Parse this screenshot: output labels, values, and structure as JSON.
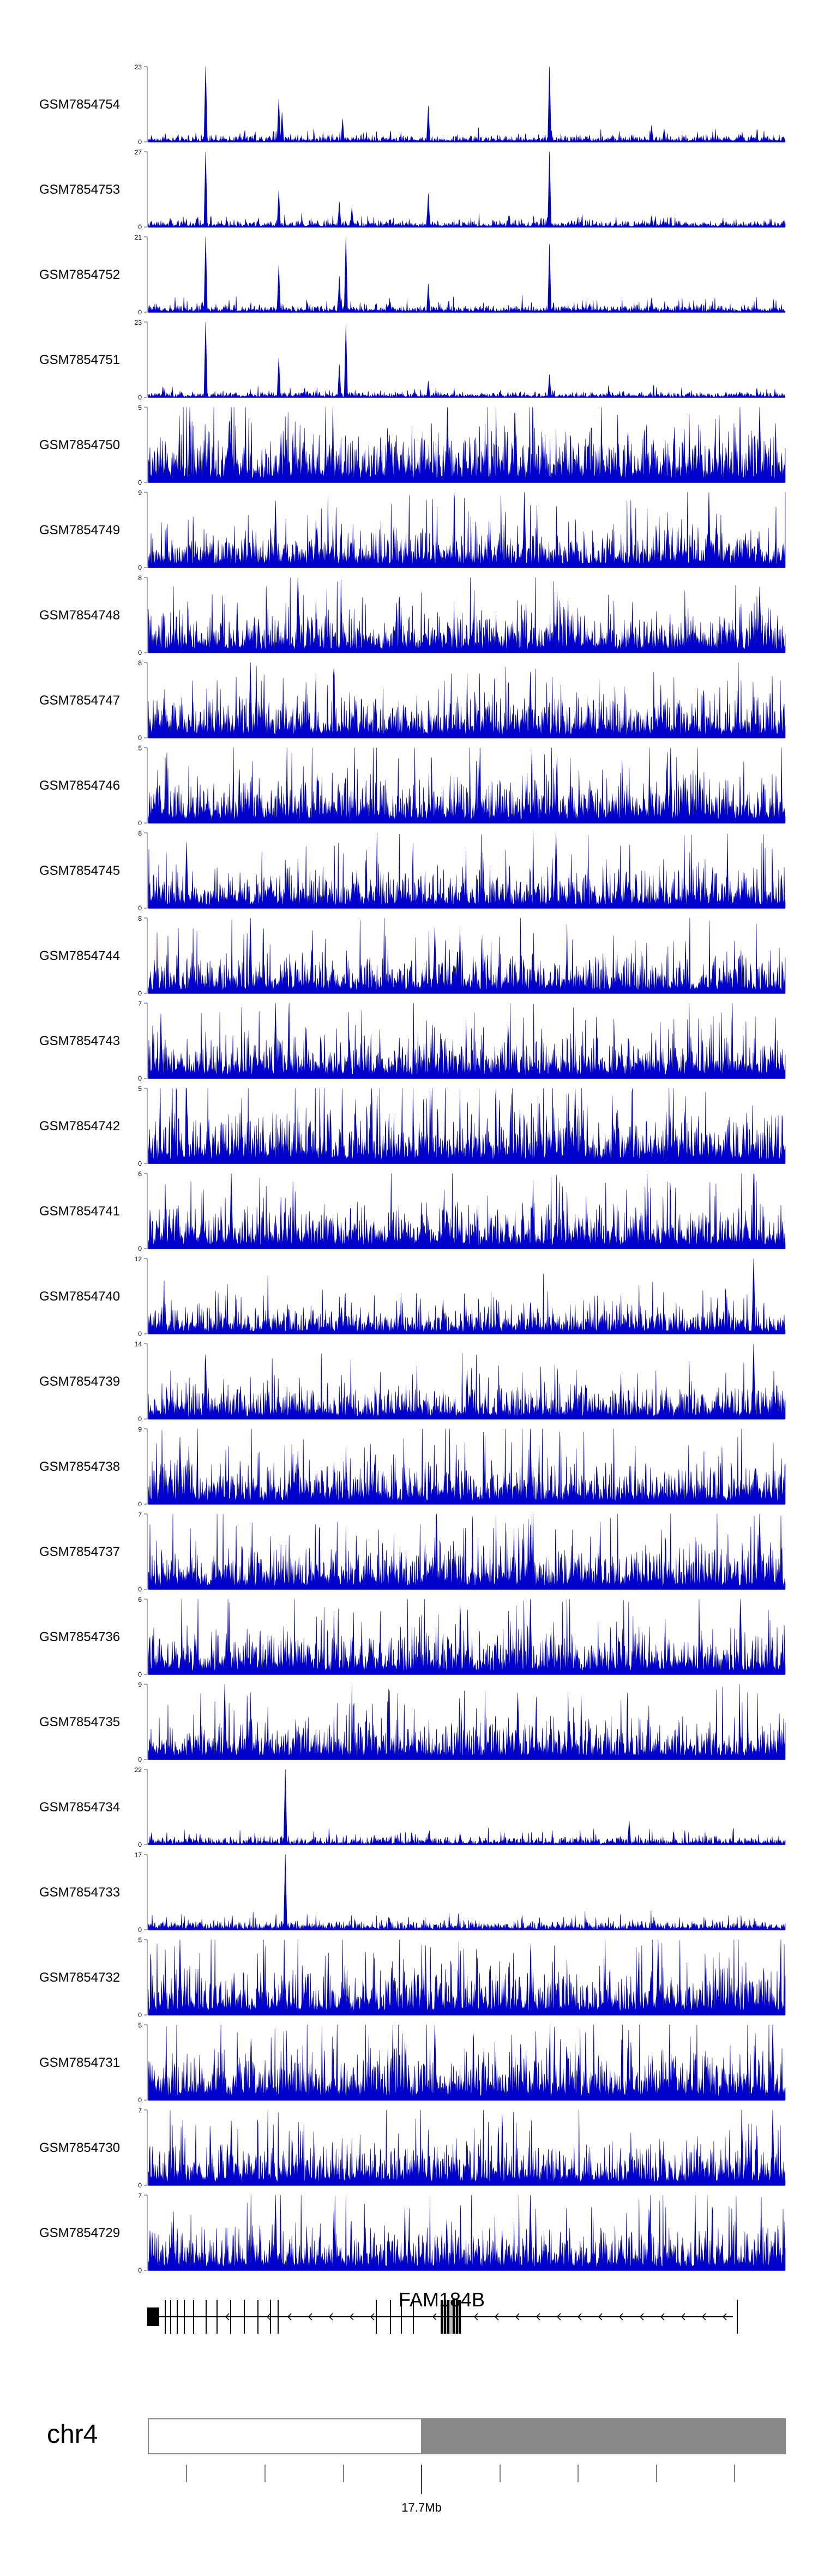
{
  "chart_data": {
    "type": "area",
    "color": "#0000cc",
    "tracks": [
      {
        "name": "GSM7854754",
        "ymax": "23",
        "ymin": "0",
        "max": 23,
        "peaks": [
          [
            0.09,
            23
          ],
          [
            0.205,
            13
          ],
          [
            0.21,
            9
          ],
          [
            0.305,
            7
          ],
          [
            0.44,
            11
          ],
          [
            0.63,
            23
          ],
          [
            0.79,
            5
          ],
          [
            0.81,
            4
          ]
        ],
        "base": 1.2
      },
      {
        "name": "GSM7854753",
        "ymax": "27",
        "ymin": "0",
        "max": 27,
        "peaks": [
          [
            0.09,
            27
          ],
          [
            0.205,
            13
          ],
          [
            0.3,
            9
          ],
          [
            0.32,
            7
          ],
          [
            0.44,
            12
          ],
          [
            0.63,
            27
          ],
          [
            0.79,
            4
          ]
        ],
        "base": 1.4
      },
      {
        "name": "GSM7854752",
        "ymax": "21",
        "ymin": "0",
        "max": 21,
        "peaks": [
          [
            0.09,
            21
          ],
          [
            0.205,
            13
          ],
          [
            0.3,
            10
          ],
          [
            0.31,
            21
          ],
          [
            0.44,
            8
          ],
          [
            0.63,
            19
          ],
          [
            0.79,
            4
          ]
        ],
        "base": 1.2
      },
      {
        "name": "GSM7854751",
        "ymax": "23",
        "ymin": "0",
        "max": 23,
        "peaks": [
          [
            0.09,
            23
          ],
          [
            0.205,
            12
          ],
          [
            0.3,
            10
          ],
          [
            0.31,
            22
          ],
          [
            0.44,
            5
          ],
          [
            0.63,
            7
          ]
        ],
        "base": 0.9
      },
      {
        "name": "GSM7854750",
        "ymax": "5",
        "ymin": "0",
        "max": 5,
        "peaks": [
          [
            0.13,
            5
          ],
          [
            0.47,
            5
          ],
          [
            0.96,
            5
          ]
        ],
        "base": 1.9
      },
      {
        "name": "GSM7854749",
        "ymax": "9",
        "ymin": "0",
        "max": 9,
        "peaks": [
          [
            0.2,
            8
          ],
          [
            0.59,
            9
          ],
          [
            0.88,
            9
          ]
        ],
        "base": 2.7
      },
      {
        "name": "GSM7854748",
        "ymax": "8",
        "ymin": "0",
        "max": 8,
        "peaks": [
          [
            0.235,
            8
          ],
          [
            0.96,
            7
          ]
        ],
        "base": 2.4
      },
      {
        "name": "GSM7854747",
        "ymax": "8",
        "ymin": "0",
        "max": 8,
        "peaks": [
          [
            0.16,
            8
          ],
          [
            0.6,
            7
          ]
        ],
        "base": 2.4
      },
      {
        "name": "GSM7854746",
        "ymax": "5",
        "ymin": "0",
        "max": 5,
        "peaks": [
          [
            0.82,
            5
          ]
        ],
        "base": 1.7
      },
      {
        "name": "GSM7854745",
        "ymax": "8",
        "ymin": "0",
        "max": 8,
        "peaks": [
          [
            0.64,
            8
          ],
          [
            0.06,
            7
          ]
        ],
        "base": 2.4
      },
      {
        "name": "GSM7854744",
        "ymax": "8",
        "ymin": "0",
        "max": 8,
        "peaks": [
          [
            0.16,
            8
          ],
          [
            0.45,
            7
          ]
        ],
        "base": 2.4
      },
      {
        "name": "GSM7854743",
        "ymax": "7",
        "ymin": "0",
        "max": 7,
        "peaks": [
          [
            0.2,
            7
          ],
          [
            0.02,
            6
          ]
        ],
        "base": 2.2
      },
      {
        "name": "GSM7854742",
        "ymax": "5",
        "ymin": "0",
        "max": 5,
        "peaks": [
          [
            0.06,
            5
          ],
          [
            0.67,
            5
          ]
        ],
        "base": 1.9
      },
      {
        "name": "GSM7854741",
        "ymax": "6",
        "ymin": "0",
        "max": 6,
        "peaks": [
          [
            0.13,
            6
          ],
          [
            0.95,
            6
          ]
        ],
        "base": 1.9
      },
      {
        "name": "GSM7854740",
        "ymax": "12",
        "ymin": "0",
        "max": 12,
        "peaks": [
          [
            0.95,
            12
          ],
          [
            0.6,
            5
          ]
        ],
        "base": 2.4
      },
      {
        "name": "GSM7854739",
        "ymax": "14",
        "ymin": "0",
        "max": 14,
        "peaks": [
          [
            0.09,
            12
          ],
          [
            0.95,
            14
          ],
          [
            0.5,
            9
          ]
        ],
        "base": 3.4
      },
      {
        "name": "GSM7854738",
        "ymax": "9",
        "ymin": "0",
        "max": 9,
        "peaks": [
          [
            0.6,
            9
          ],
          [
            0.05,
            8
          ]
        ],
        "base": 2.8
      },
      {
        "name": "GSM7854737",
        "ymax": "7",
        "ymin": "0",
        "max": 7,
        "peaks": [
          [
            0.96,
            7
          ],
          [
            0.6,
            6
          ]
        ],
        "base": 2.2
      },
      {
        "name": "GSM7854736",
        "ymax": "6",
        "ymin": "0",
        "max": 6,
        "peaks": [
          [
            0.6,
            6
          ],
          [
            0.93,
            6
          ]
        ],
        "base": 2.0
      },
      {
        "name": "GSM7854735",
        "ymax": "9",
        "ymin": "0",
        "max": 9,
        "peaks": [
          [
            0.12,
            9
          ],
          [
            0.58,
            8
          ]
        ],
        "base": 2.6
      },
      {
        "name": "GSM7854734",
        "ymax": "22",
        "ymin": "0",
        "max": 22,
        "peaks": [
          [
            0.215,
            22
          ],
          [
            0.755,
            7
          ]
        ],
        "base": 1.4
      },
      {
        "name": "GSM7854733",
        "ymax": "17",
        "ymin": "0",
        "max": 17,
        "peaks": [
          [
            0.215,
            17
          ]
        ],
        "base": 1.2
      },
      {
        "name": "GSM7854732",
        "ymax": "5",
        "ymin": "0",
        "max": 5,
        "peaks": [
          [
            0.05,
            5
          ],
          [
            0.8,
            5
          ]
        ],
        "base": 1.8
      },
      {
        "name": "GSM7854731",
        "ymax": "5",
        "ymin": "0",
        "max": 5,
        "peaks": [
          [
            0.98,
            5
          ],
          [
            0.45,
            5
          ]
        ],
        "base": 1.9
      },
      {
        "name": "GSM7854730",
        "ymax": "7",
        "ymin": "0",
        "max": 7,
        "peaks": [
          [
            0.98,
            7
          ],
          [
            0.13,
            6
          ]
        ],
        "base": 2.2
      },
      {
        "name": "GSM7854729",
        "ymax": "7",
        "ymin": "0",
        "max": 7,
        "peaks": [
          [
            0.2,
            7
          ],
          [
            0.6,
            7
          ]
        ],
        "base": 2.3
      }
    ],
    "gene": {
      "name": "FAM184B",
      "strand": "-"
    },
    "ideogram": {
      "chromosome": "chr4",
      "position_label": "17.7Mb"
    }
  }
}
